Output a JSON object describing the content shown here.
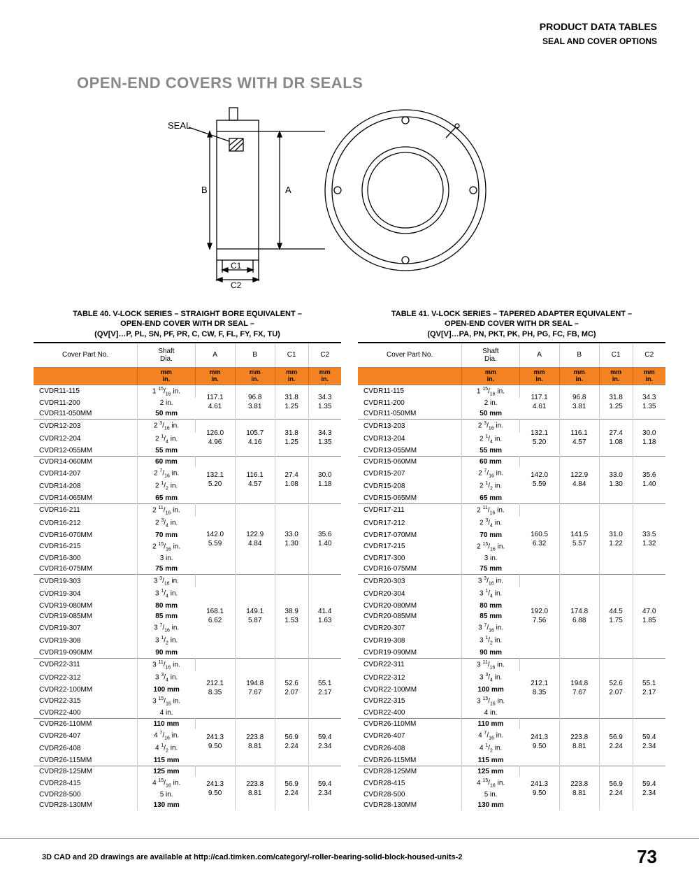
{
  "header": {
    "line1": "PRODUCT DATA TABLES",
    "line2": "SEAL AND COVER OPTIONS"
  },
  "main_title": "OPEN-END COVERS WITH DR SEALS",
  "diagram": {
    "labels": {
      "seal": "SEAL",
      "b": "B",
      "a": "A",
      "c1": "C1",
      "c2": "C2",
      "seal_hatch": true
    },
    "stroke_color": "#000",
    "stroke_width": 1.5,
    "background": "#fff"
  },
  "table40": {
    "title_l1": "TABLE 40. V-LOCK SERIES – STRAIGHT BORE EQUIVALENT –",
    "title_l2": "OPEN-END COVER WITH DR SEAL –",
    "title_l3": "(QV[V]…P, PL, SN, PF, PR, C, CW, F, FL, FY, FX, TU)",
    "columns": [
      "Cover Part No.",
      "Shaft\nDia.",
      "A",
      "B",
      "C1",
      "C2"
    ],
    "unit_row": [
      "",
      "mm\nin.",
      "mm\nin.",
      "mm\nin.",
      "mm\nin.",
      "mm\nin."
    ],
    "groups": [
      {
        "rows": [
          {
            "pn": "CVDR11-115",
            "shaft": "1 <sup>15</sup>/<sub>16</sub> in."
          },
          {
            "pn": "CVDR11-200",
            "shaft": "2 in."
          },
          {
            "pn": "CVDR11-050MM",
            "shaft": "<b>50 mm</b>"
          }
        ],
        "dims": {
          "A": [
            "117.1",
            "4.61"
          ],
          "B": [
            "96.8",
            "3.81"
          ],
          "C1": [
            "31.8",
            "1.25"
          ],
          "C2": [
            "34.3",
            "1.35"
          ]
        }
      },
      {
        "rows": [
          {
            "pn": "CVDR12-203",
            "shaft": "2 <sup>3</sup>/<sub>16</sub> in."
          },
          {
            "pn": "CVDR12-204",
            "shaft": "2 <sup>1</sup>/<sub>4</sub> in."
          },
          {
            "pn": "CVDR12-055MM",
            "shaft": "<b>55 mm</b>"
          }
        ],
        "dims": {
          "A": [
            "126.0",
            "4.96"
          ],
          "B": [
            "105.7",
            "4.16"
          ],
          "C1": [
            "31.8",
            "1.25"
          ],
          "C2": [
            "34.3",
            "1.35"
          ]
        }
      },
      {
        "rows": [
          {
            "pn": "CVDR14-060MM",
            "shaft": "<b>60 mm</b>"
          },
          {
            "pn": "CVDR14-207",
            "shaft": "2 <sup>7</sup>/<sub>16</sub> in."
          },
          {
            "pn": "CVDR14-208",
            "shaft": "2 <sup>1</sup>/<sub>2</sub> in."
          },
          {
            "pn": "CVDR14-065MM",
            "shaft": "<b>65 mm</b>"
          }
        ],
        "dims": {
          "A": [
            "132.1",
            "5.20"
          ],
          "B": [
            "116.1",
            "4.57"
          ],
          "C1": [
            "27.4",
            "1.08"
          ],
          "C2": [
            "30.0",
            "1.18"
          ]
        }
      },
      {
        "rows": [
          {
            "pn": "CVDR16-211",
            "shaft": "2 <sup>11</sup>/<sub>16</sub> in."
          },
          {
            "pn": "CVDR16-212",
            "shaft": "2 <sup>3</sup>/<sub>4</sub> in."
          },
          {
            "pn": "CVDR16-070MM",
            "shaft": "<b>70 mm</b>"
          },
          {
            "pn": "CVDR16-215",
            "shaft": "2 <sup>15</sup>/<sub>16</sub> in."
          },
          {
            "pn": "CVDR16-300",
            "shaft": "3 in."
          },
          {
            "pn": "CVDR16-075MM",
            "shaft": "<b>75 mm</b>"
          }
        ],
        "dims": {
          "A": [
            "142.0",
            "5.59"
          ],
          "B": [
            "122.9",
            "4.84"
          ],
          "C1": [
            "33.0",
            "1.30"
          ],
          "C2": [
            "35.6",
            "1.40"
          ]
        }
      },
      {
        "rows": [
          {
            "pn": "CVDR19-303",
            "shaft": "3 <sup>3</sup>/<sub>16</sub> in."
          },
          {
            "pn": "CVDR19-304",
            "shaft": "3 <sup>1</sup>/<sub>4</sub> in."
          },
          {
            "pn": "CVDR19-080MM",
            "shaft": "<b>80 mm</b>"
          },
          {
            "pn": "CVDR19-085MM",
            "shaft": "<b>85 mm</b>"
          },
          {
            "pn": "CVDR19-307",
            "shaft": "3 <sup>7</sup>/<sub>16</sub> in."
          },
          {
            "pn": "CVDR19-308",
            "shaft": "3 <sup>1</sup>/<sub>2</sub> in."
          },
          {
            "pn": "CVDR19-090MM",
            "shaft": "<b>90 mm</b>"
          }
        ],
        "dims": {
          "A": [
            "168.1",
            "6.62"
          ],
          "B": [
            "149.1",
            "5.87"
          ],
          "C1": [
            "38.9",
            "1.53"
          ],
          "C2": [
            "41.4",
            "1.63"
          ]
        }
      },
      {
        "rows": [
          {
            "pn": "CVDR22-311",
            "shaft": "3 <sup>11</sup>/<sub>16</sub> in."
          },
          {
            "pn": "CVDR22-312",
            "shaft": "3 <sup>3</sup>/<sub>4</sub> in."
          },
          {
            "pn": "CVDR22-100MM",
            "shaft": "<b>100 mm</b>"
          },
          {
            "pn": "CVDR22-315",
            "shaft": "3 <sup>15</sup>/<sub>16</sub> in."
          },
          {
            "pn": "CVDR22-400",
            "shaft": "4 in."
          }
        ],
        "dims": {
          "A": [
            "212.1",
            "8.35"
          ],
          "B": [
            "194.8",
            "7.67"
          ],
          "C1": [
            "52.6",
            "2.07"
          ],
          "C2": [
            "55.1",
            "2.17"
          ]
        }
      },
      {
        "rows": [
          {
            "pn": "CVDR26-110MM",
            "shaft": "<b>110 mm</b>"
          },
          {
            "pn": "CVDR26-407",
            "shaft": "4 <sup>7</sup>/<sub>16</sub> in."
          },
          {
            "pn": "CVDR26-408",
            "shaft": "4 <sup>1</sup>/<sub>2</sub> in."
          },
          {
            "pn": "CVDR26-115MM",
            "shaft": "<b>115 mm</b>"
          }
        ],
        "dims": {
          "A": [
            "241.3",
            "9.50"
          ],
          "B": [
            "223.8",
            "8.81"
          ],
          "C1": [
            "56.9",
            "2.24"
          ],
          "C2": [
            "59.4",
            "2.34"
          ]
        }
      },
      {
        "rows": [
          {
            "pn": "CVDR28-125MM",
            "shaft": "<b>125 mm</b>"
          },
          {
            "pn": "CVDR28-415",
            "shaft": "4 <sup>15</sup>/<sub>16</sub> in."
          },
          {
            "pn": "CVDR28-500",
            "shaft": "5 in."
          },
          {
            "pn": "CVDR28-130MM",
            "shaft": "<b>130 mm</b>"
          }
        ],
        "dims": {
          "A": [
            "241.3",
            "9.50"
          ],
          "B": [
            "223.8",
            "8.81"
          ],
          "C1": [
            "56.9",
            "2.24"
          ],
          "C2": [
            "59.4",
            "2.34"
          ]
        }
      }
    ]
  },
  "table41": {
    "title_l1": "TABLE 41. V-LOCK SERIES – TAPERED ADAPTER EQUIVALENT –",
    "title_l2": "OPEN-END COVER WITH DR SEAL –",
    "title_l3": "(QV[V]…PA, PN, PKT, PK, PH, PG, FC, FB, MC)",
    "columns": [
      "Cover Part No.",
      "Shaft\nDia.",
      "A",
      "B",
      "C1",
      "C2"
    ],
    "unit_row": [
      "",
      "mm\nin.",
      "mm\nin.",
      "mm\nin.",
      "mm\nin.",
      "mm\nin."
    ],
    "groups": [
      {
        "rows": [
          {
            "pn": "CVDR11-115",
            "shaft": "1 <sup>15</sup>/<sub>16</sub> in."
          },
          {
            "pn": "CVDR11-200",
            "shaft": "2 in."
          },
          {
            "pn": "CVDR11-050MM",
            "shaft": "<b>50 mm</b>"
          }
        ],
        "dims": {
          "A": [
            "117.1",
            "4.61"
          ],
          "B": [
            "96.8",
            "3.81"
          ],
          "C1": [
            "31.8",
            "1.25"
          ],
          "C2": [
            "34.3",
            "1.35"
          ]
        }
      },
      {
        "rows": [
          {
            "pn": "CVDR13-203",
            "shaft": "2 <sup>3</sup>/<sub>16</sub> in."
          },
          {
            "pn": "CVDR13-204",
            "shaft": "2 <sup>1</sup>/<sub>4</sub> in."
          },
          {
            "pn": "CVDR13-055MM",
            "shaft": "<b>55 mm</b>"
          }
        ],
        "dims": {
          "A": [
            "132.1",
            "5.20"
          ],
          "B": [
            "116.1",
            "4.57"
          ],
          "C1": [
            "27.4",
            "1.08"
          ],
          "C2": [
            "30.0",
            "1.18"
          ]
        }
      },
      {
        "rows": [
          {
            "pn": "CVDR15-060MM",
            "shaft": "<b>60 mm</b>"
          },
          {
            "pn": "CVDR15-207",
            "shaft": "2 <sup>7</sup>/<sub>16</sub> in."
          },
          {
            "pn": "CVDR15-208",
            "shaft": "2 <sup>1</sup>/<sub>2</sub> in."
          },
          {
            "pn": "CVDR15-065MM",
            "shaft": "<b>65 mm</b>"
          }
        ],
        "dims": {
          "A": [
            "142.0",
            "5.59"
          ],
          "B": [
            "122.9",
            "4.84"
          ],
          "C1": [
            "33.0",
            "1.30"
          ],
          "C2": [
            "35.6",
            "1.40"
          ]
        }
      },
      {
        "rows": [
          {
            "pn": "CVDR17-211",
            "shaft": "2 <sup>11</sup>/<sub>16</sub> in."
          },
          {
            "pn": "CVDR17-212",
            "shaft": "2 <sup>3</sup>/<sub>4</sub> in."
          },
          {
            "pn": "CVDR17-070MM",
            "shaft": "<b>70 mm</b>"
          },
          {
            "pn": "CVDR17-215",
            "shaft": "2 <sup>15</sup>/<sub>16</sub> in."
          },
          {
            "pn": "CVDR17-300",
            "shaft": "3 in."
          },
          {
            "pn": "CVDR16-075MM",
            "shaft": "<b>75 mm</b>"
          }
        ],
        "dims": {
          "A": [
            "160.5",
            "6.32"
          ],
          "B": [
            "141.5",
            "5.57"
          ],
          "C1": [
            "31.0",
            "1.22"
          ],
          "C2": [
            "33.5",
            "1.32"
          ]
        }
      },
      {
        "rows": [
          {
            "pn": "CVDR20-303",
            "shaft": "3 <sup>3</sup>/<sub>16</sub> in."
          },
          {
            "pn": "CVDR20-304",
            "shaft": "3 <sup>1</sup>/<sub>4</sub> in."
          },
          {
            "pn": "CVDR20-080MM",
            "shaft": "<b>80 mm</b>"
          },
          {
            "pn": "CVDR20-085MM",
            "shaft": "<b>85 mm</b>"
          },
          {
            "pn": "CVDR20-307",
            "shaft": "3 <sup>7</sup>/<sub>16</sub> in."
          },
          {
            "pn": "CVDR19-308",
            "shaft": "3 <sup>1</sup>/<sub>2</sub> in."
          },
          {
            "pn": "CVDR19-090MM",
            "shaft": "<b>90 mm</b>"
          }
        ],
        "dims": {
          "A": [
            "192.0",
            "7.56"
          ],
          "B": [
            "174.8",
            "6.88"
          ],
          "C1": [
            "44.5",
            "1.75"
          ],
          "C2": [
            "47.0",
            "1.85"
          ]
        }
      },
      {
        "rows": [
          {
            "pn": "CVDR22-311",
            "shaft": "3 <sup>11</sup>/<sub>16</sub> in."
          },
          {
            "pn": "CVDR22-312",
            "shaft": "3 <sup>3</sup>/<sub>4</sub> in."
          },
          {
            "pn": "CVDR22-100MM",
            "shaft": "<b>100 mm</b>"
          },
          {
            "pn": "CVDR22-315",
            "shaft": "3 <sup>15</sup>/<sub>16</sub> in."
          },
          {
            "pn": "CVDR22-400",
            "shaft": "4 in."
          }
        ],
        "dims": {
          "A": [
            "212.1",
            "8.35"
          ],
          "B": [
            "194.8",
            "7.67"
          ],
          "C1": [
            "52.6",
            "2.07"
          ],
          "C2": [
            "55.1",
            "2.17"
          ]
        }
      },
      {
        "rows": [
          {
            "pn": "CVDR26-110MM",
            "shaft": "<b>110 mm</b>"
          },
          {
            "pn": "CVDR26-407",
            "shaft": "4 <sup>7</sup>/<sub>16</sub> in."
          },
          {
            "pn": "CVDR26-408",
            "shaft": "4 <sup>1</sup>/<sub>2</sub> in."
          },
          {
            "pn": "CVDR26-115MM",
            "shaft": "<b>115 mm</b>"
          }
        ],
        "dims": {
          "A": [
            "241.3",
            "9.50"
          ],
          "B": [
            "223.8",
            "8.81"
          ],
          "C1": [
            "56.9",
            "2.24"
          ],
          "C2": [
            "59.4",
            "2.34"
          ]
        }
      },
      {
        "rows": [
          {
            "pn": "CVDR28-125MM",
            "shaft": "<b>125 mm</b>"
          },
          {
            "pn": "CVDR28-415",
            "shaft": "4 <sup>15</sup>/<sub>16</sub> in."
          },
          {
            "pn": "CVDR28-500",
            "shaft": "5 in."
          },
          {
            "pn": "CVDR28-130MM",
            "shaft": "<b>130 mm</b>"
          }
        ],
        "dims": {
          "A": [
            "241.3",
            "9.50"
          ],
          "B": [
            "223.8",
            "8.81"
          ],
          "C1": [
            "56.9",
            "2.24"
          ],
          "C2": [
            "59.4",
            "2.34"
          ]
        }
      }
    ]
  },
  "footer": {
    "text": "3D CAD and 2D drawings are available at http://cad.timken.com/category/-roller-bearing-solid-block-housed-units-2",
    "page": "73"
  },
  "colors": {
    "orange": "#f58220",
    "grey_title": "#888888",
    "border": "#888888",
    "text": "#000000"
  }
}
